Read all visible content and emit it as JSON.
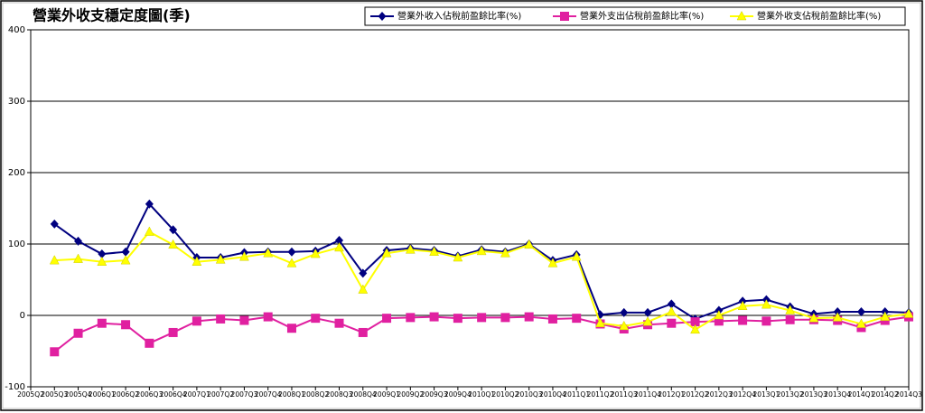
{
  "chart_data": {
    "type": "line",
    "title": "營業外收支穩定度圖(季)",
    "categories": [
      "2005Q2",
      "2005Q3",
      "2005Q4",
      "2006Q1",
      "2006Q2",
      "2006Q3",
      "2006Q4",
      "2007Q1",
      "2007Q2",
      "2007Q3",
      "2007Q4",
      "2008Q1",
      "2008Q2",
      "2008Q3",
      "2008Q4",
      "2009Q1",
      "2009Q2",
      "2009Q3",
      "2009Q4",
      "2010Q1",
      "2010Q2",
      "2010Q3",
      "2010Q4",
      "2011Q1",
      "2011Q2",
      "2011Q3",
      "2011Q4",
      "2012Q1",
      "2012Q2",
      "2012Q3",
      "2012Q4",
      "2013Q1",
      "2013Q2",
      "2013Q3",
      "2013Q4",
      "2014Q1",
      "2014Q2",
      "2014Q3"
    ],
    "series": [
      {
        "name": "營業外收入佔稅前盈餘比率(%)",
        "color": "#000080",
        "marker": "diamond",
        "values": [
          null,
          128,
          104,
          86,
          89,
          156,
          120,
          81,
          81,
          88,
          89,
          89,
          90,
          105,
          59,
          91,
          94,
          91,
          83,
          92,
          89,
          100,
          77,
          85,
          1,
          4,
          4,
          16,
          -5,
          7,
          20,
          22,
          12,
          2,
          5,
          5,
          5,
          4
        ]
      },
      {
        "name": "營業外支出佔稅前盈餘比率(%)",
        "color": "#e020a0",
        "marker": "square",
        "values": [
          null,
          -51,
          -25,
          -11,
          -13,
          -39,
          -24,
          -8,
          -5,
          -7,
          -2,
          -18,
          -4,
          -11,
          -24,
          -4,
          -3,
          -2,
          -4,
          -3,
          -3,
          -2,
          -5,
          -4,
          -12,
          -19,
          -13,
          -11,
          -9,
          -8,
          -7,
          -8,
          -6,
          -6,
          -7,
          -17,
          -7,
          -2
        ]
      },
      {
        "name": "營業外收支佔稅前盈餘比率(%)",
        "color": "#ffff00",
        "marker": "triangle",
        "values": [
          null,
          77,
          79,
          75,
          77,
          117,
          99,
          75,
          78,
          82,
          87,
          73,
          86,
          95,
          36,
          87,
          92,
          89,
          81,
          90,
          87,
          99,
          73,
          82,
          -11,
          -15,
          -9,
          5,
          -20,
          0,
          13,
          15,
          7,
          -4,
          -3,
          -12,
          -2,
          2
        ]
      }
    ],
    "ylim": [
      -100,
      400
    ],
    "yticks": [
      -100,
      0,
      100,
      200,
      300,
      400
    ],
    "grid": true
  }
}
